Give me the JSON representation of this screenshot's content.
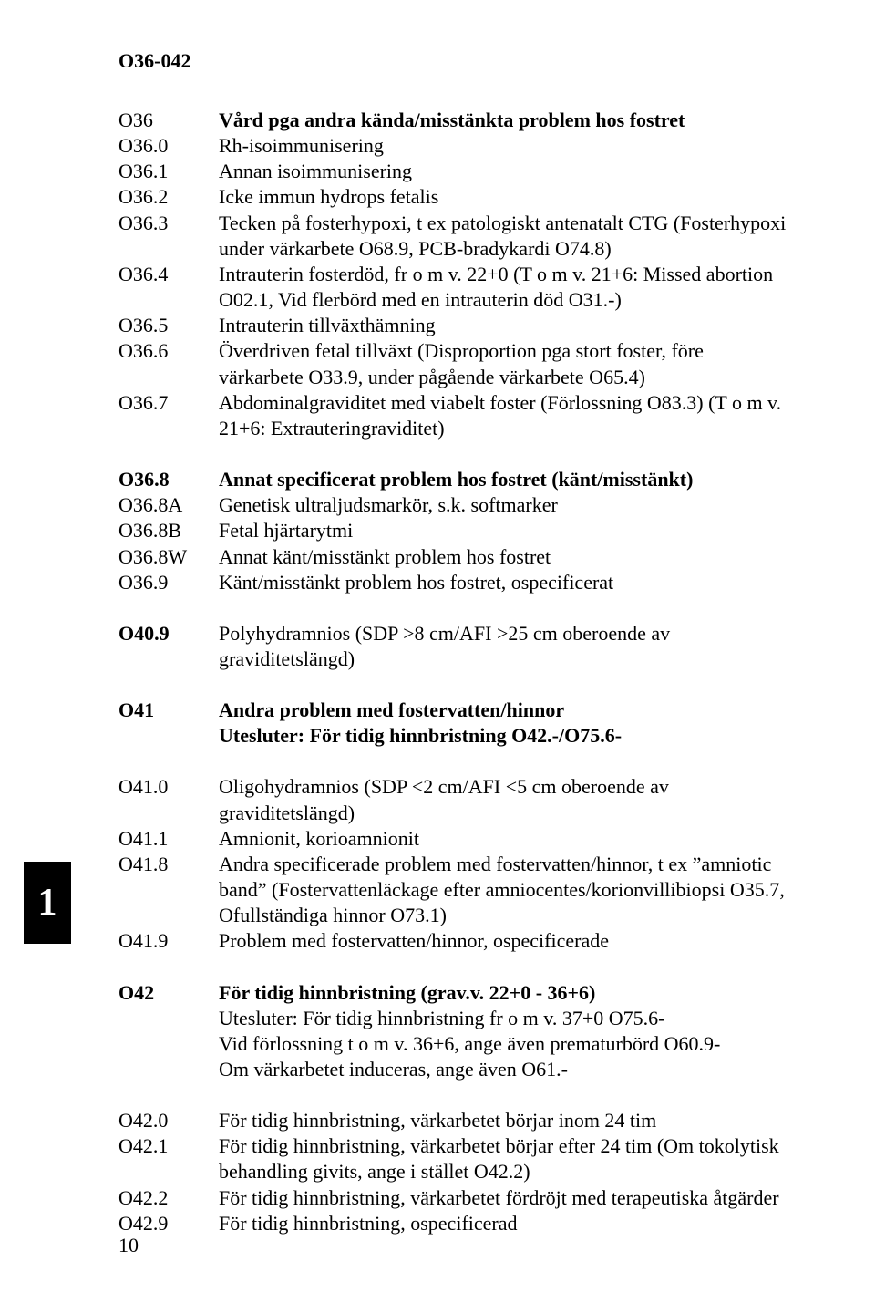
{
  "header_code": "O36-042",
  "side_tab": "1",
  "page_number": "10",
  "sections": [
    {
      "id": "sec-o36",
      "entries": [
        {
          "code": "O36",
          "code_bold": false,
          "text": "Vård pga andra kända/misstänkta problem hos fostret",
          "text_bold": true
        },
        {
          "code": "O36.0",
          "code_bold": false,
          "text": "Rh-isoimmunisering",
          "text_bold": false
        },
        {
          "code": "O36.1",
          "code_bold": false,
          "text": "Annan isoimmunisering",
          "text_bold": false
        },
        {
          "code": "O36.2",
          "code_bold": false,
          "text": "Icke immun hydrops fetalis",
          "text_bold": false
        },
        {
          "code": "O36.3",
          "code_bold": false,
          "text": "Tecken på fosterhypoxi, t ex patologiskt antenatalt CTG (Fosterhypoxi under värkarbete O68.9, PCB-bradykardi O74.8)",
          "text_bold": false
        },
        {
          "code": "O36.4",
          "code_bold": false,
          "text": "Intrauterin fosterdöd, fr o m v. 22+0 (T o m v. 21+6: Missed abortion O02.1, Vid flerbörd med en intrauterin död O31.-)",
          "text_bold": false
        },
        {
          "code": "O36.5",
          "code_bold": false,
          "text": "Intrauterin tillväxthämning",
          "text_bold": false
        },
        {
          "code": "O36.6",
          "code_bold": false,
          "text": "Överdriven fetal tillväxt (Disproportion pga stort foster, före värkarbete O33.9, under pågående värkarbete O65.4)",
          "text_bold": false
        },
        {
          "code": "O36.7",
          "code_bold": false,
          "text": "Abdominalgraviditet med viabelt foster (Förlossning O83.3) (T o m v. 21+6: Extrauteringraviditet)",
          "text_bold": false
        }
      ]
    },
    {
      "id": "sec-o36-8",
      "entries": [
        {
          "code": "O36.8",
          "code_bold": true,
          "text": "Annat specificerat problem hos fostret (känt/misstänkt)",
          "text_bold": true
        },
        {
          "code": "O36.8A",
          "code_bold": false,
          "text": "Genetisk ultraljudsmarkör, s.k. softmarker",
          "text_bold": false
        },
        {
          "code": "O36.8B",
          "code_bold": false,
          "text": "Fetal hjärtarytmi",
          "text_bold": false
        },
        {
          "code": "O36.8W",
          "code_bold": false,
          "text": "Annat känt/misstänkt problem hos fostret",
          "text_bold": false
        },
        {
          "code": "O36.9",
          "code_bold": false,
          "text": "Känt/misstänkt problem hos fostret, ospecificerat",
          "text_bold": false
        }
      ]
    },
    {
      "id": "sec-o40",
      "entries": [
        {
          "code": "O40.9",
          "code_bold": true,
          "text": "Polyhydramnios (SDP >8 cm/AFI >25 cm oberoende av graviditetslängd)",
          "text_bold": false
        }
      ]
    },
    {
      "id": "sec-o41-head",
      "entries": [
        {
          "code": "O41",
          "code_bold": true,
          "text": "Andra problem med fostervatten/hinnor\nUtesluter: För tidig hinnbristning O42.-/O75.6-",
          "text_bold": true
        }
      ]
    },
    {
      "id": "sec-o41",
      "entries": [
        {
          "code": "O41.0",
          "code_bold": false,
          "text": "Oligohydramnios (SDP <2 cm/AFI <5 cm oberoende av graviditetslängd)",
          "text_bold": false
        },
        {
          "code": "O41.1",
          "code_bold": false,
          "text": "Amnionit, korioamnionit",
          "text_bold": false
        },
        {
          "code": "O41.8",
          "code_bold": false,
          "text": "Andra specificerade problem med fostervatten/hinnor, t ex ”amniotic band” (Fostervattenläckage efter amniocentes/korionvillibiopsi O35.7, Ofullständiga hinnor O73.1)",
          "text_bold": false
        },
        {
          "code": "O41.9",
          "code_bold": false,
          "text": "Problem med fostervatten/hinnor, ospecificerade",
          "text_bold": false
        }
      ]
    },
    {
      "id": "sec-o42-head",
      "entries": [
        {
          "code": "O42",
          "code_bold": true,
          "text": "För tidig hinnbristning (grav.v. 22+0 - 36+6)\nUtesluter: För tidig hinnbristning fr o m v. 37+0 O75.6-\nVid förlossning t o m v. 36+6, ange även prematurbörd O60.9-\nOm värkarbetet induceras, ange även O61.-",
          "text_bold": true,
          "mixed": true
        }
      ]
    },
    {
      "id": "sec-o42",
      "entries": [
        {
          "code": "O42.0",
          "code_bold": false,
          "text": "För tidig hinnbristning, värkarbetet börjar inom 24 tim",
          "text_bold": false
        },
        {
          "code": "O42.1",
          "code_bold": false,
          "text": "För tidig hinnbristning, värkarbetet börjar efter 24 tim (Om tokolytisk behandling givits, ange i stället O42.2)",
          "text_bold": false
        },
        {
          "code": "O42.2",
          "code_bold": false,
          "text": "För tidig hinnbristning, värkarbetet fördröjt med terapeutiska åtgärder",
          "text_bold": false
        },
        {
          "code": "O42.9",
          "code_bold": false,
          "text": "För tidig hinnbristning, ospecificerad",
          "text_bold": false
        }
      ]
    }
  ]
}
